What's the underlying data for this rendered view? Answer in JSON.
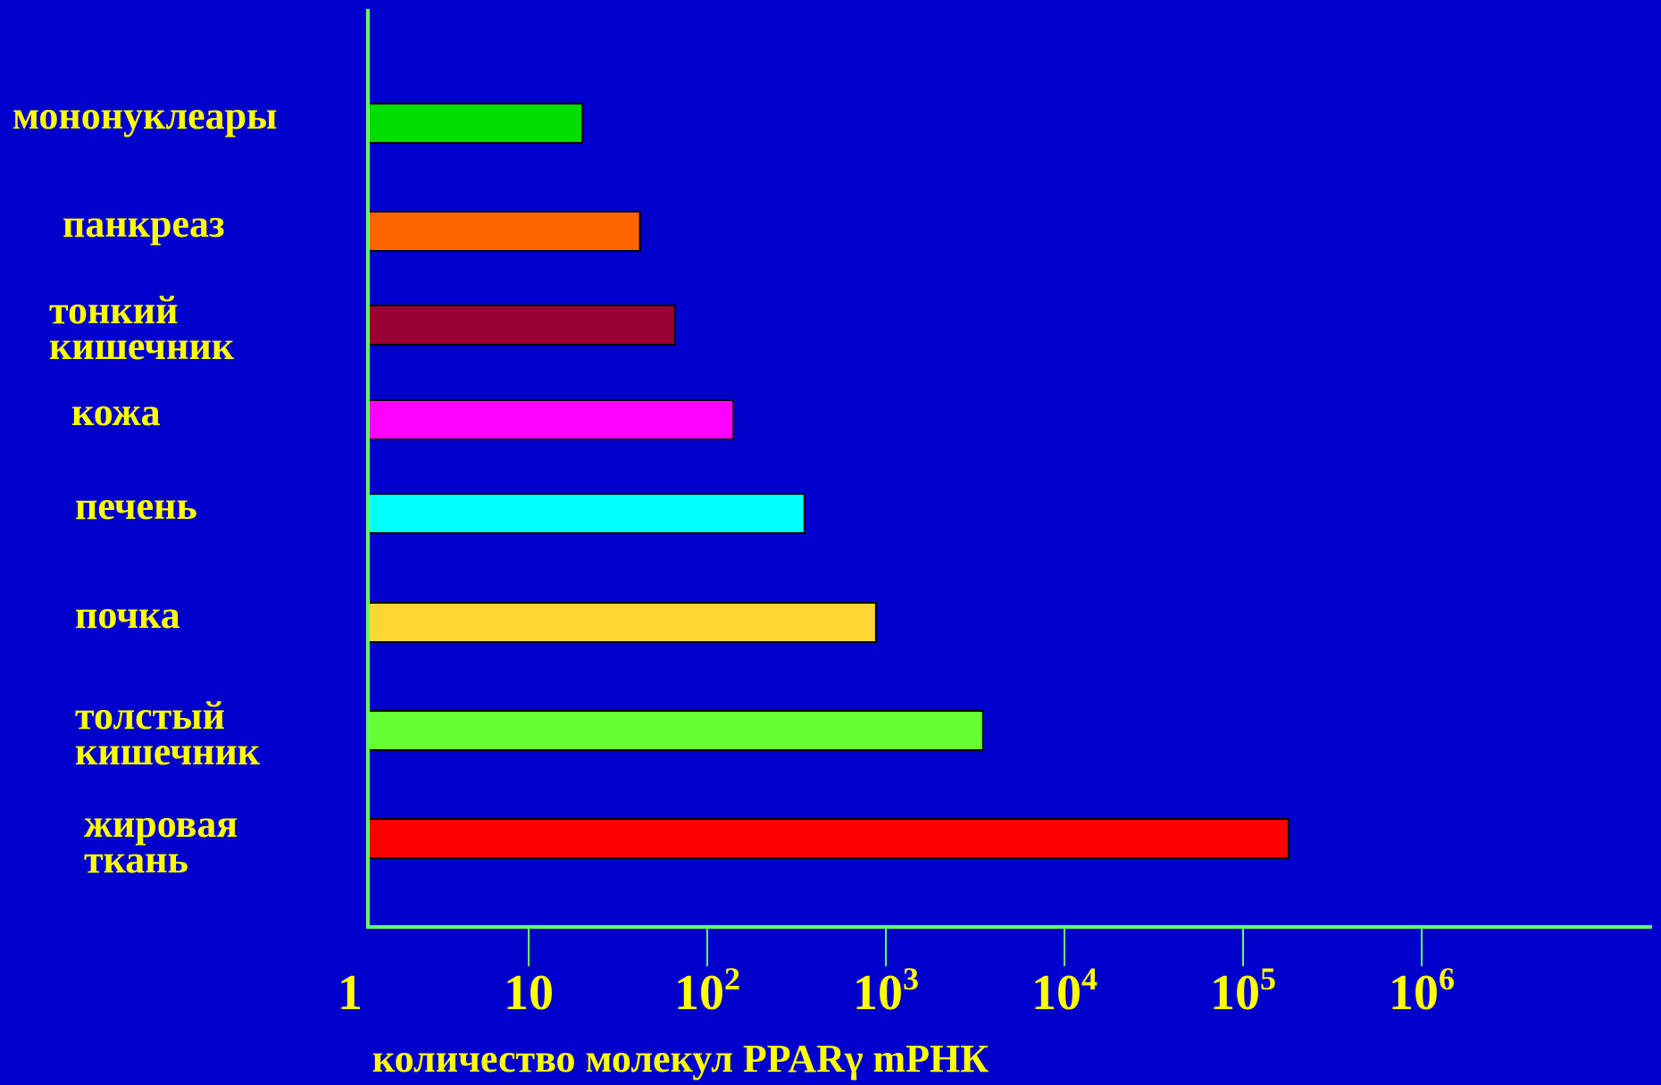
{
  "chart_data": {
    "type": "bar",
    "orientation": "horizontal",
    "scale": "log",
    "xlabel": "количество молекул PPARγ mРНК",
    "categories": [
      [
        "мононуклеары"
      ],
      [
        "панкреаз"
      ],
      [
        "тонкий",
        "кишечник"
      ],
      [
        "кожа"
      ],
      [
        "печень"
      ],
      [
        "почка"
      ],
      [
        "толстый",
        "кишечник"
      ],
      [
        "жировая",
        "ткань"
      ]
    ],
    "values": [
      20,
      42,
      66,
      140,
      350,
      880,
      3500,
      180000
    ],
    "colors": [
      "#00dd00",
      "#ff6600",
      "#990033",
      "#ff00ff",
      "#00ffff",
      "#ffd633",
      "#66ff33",
      "#ff0000"
    ],
    "ticks": [
      {
        "value": 1,
        "base": "1",
        "exp": ""
      },
      {
        "value": 10,
        "base": "10",
        "exp": ""
      },
      {
        "value": 100,
        "base": "10",
        "exp": "2"
      },
      {
        "value": 1000,
        "base": "10",
        "exp": "3"
      },
      {
        "value": 10000,
        "base": "10",
        "exp": "4"
      },
      {
        "value": 100000,
        "base": "10",
        "exp": "5"
      },
      {
        "value": 1000000,
        "base": "10",
        "exp": "6"
      }
    ],
    "xlim": [
      1,
      3000000
    ],
    "axis_color": "#66ff66",
    "label_color": "#ffff00",
    "background": "#0000cc",
    "grid": false
  }
}
